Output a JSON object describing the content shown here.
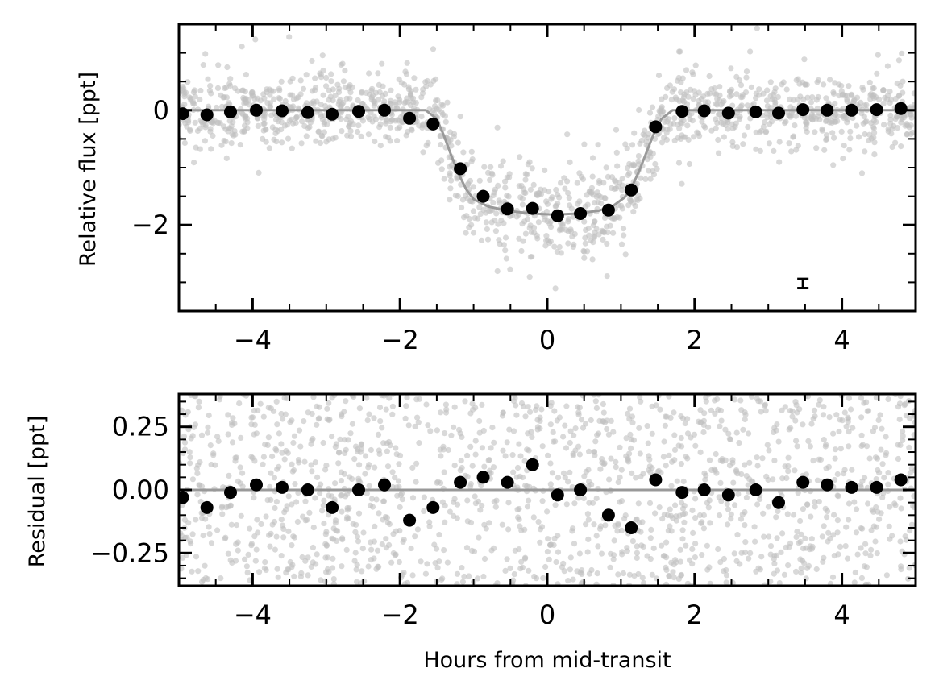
{
  "chart_data": [
    {
      "type": "scatter",
      "panel": "top",
      "xlabel": "",
      "ylabel": "Relative flux [ppt]",
      "xlim": [
        -5,
        5
      ],
      "ylim": [
        -3.5,
        1.5
      ],
      "xticks": [
        -4,
        -2,
        0,
        2,
        4
      ],
      "xtick_labels": [
        "−4",
        "−2",
        "0",
        "2",
        "4"
      ],
      "yticks": [
        -2,
        0
      ],
      "ytick_labels": [
        "−2",
        "0"
      ],
      "ticks_direction": "in",
      "colors": {
        "raw": "#bfbfbf",
        "binned": "#000000",
        "model": "#999999"
      },
      "binned_series": {
        "x": [
          -4.95,
          -4.62,
          -4.3,
          -3.95,
          -3.6,
          -3.25,
          -2.92,
          -2.56,
          -2.21,
          -1.87,
          -1.55,
          -1.18,
          -0.87,
          -0.54,
          -0.2,
          0.14,
          0.45,
          0.83,
          1.14,
          1.47,
          1.83,
          2.13,
          2.46,
          2.83,
          3.14,
          3.47,
          3.8,
          4.13,
          4.47,
          4.8
        ],
        "y": [
          -0.06,
          -0.08,
          -0.03,
          0.0,
          -0.01,
          -0.04,
          -0.07,
          -0.02,
          0.0,
          -0.14,
          -0.24,
          -1.02,
          -1.5,
          -1.72,
          -1.71,
          -1.84,
          -1.8,
          -1.74,
          -1.39,
          -0.29,
          -0.02,
          -0.01,
          -0.05,
          -0.03,
          -0.05,
          0.01,
          0.0,
          0.0,
          0.01,
          0.03
        ]
      },
      "model_series": {
        "x": [
          -5,
          -1.65,
          -1.5,
          -1.4,
          -1.3,
          -1.2,
          -1.1,
          -1.0,
          -0.8,
          -0.5,
          -0.2,
          0.1,
          0.4,
          0.7,
          0.9,
          1.05,
          1.15,
          1.25,
          1.35,
          1.45,
          1.55,
          1.7,
          5
        ],
        "y": [
          0,
          0,
          -0.15,
          -0.45,
          -0.8,
          -1.12,
          -1.38,
          -1.55,
          -1.68,
          -1.76,
          -1.8,
          -1.82,
          -1.8,
          -1.75,
          -1.66,
          -1.52,
          -1.33,
          -1.05,
          -0.72,
          -0.4,
          -0.15,
          0,
          0
        ]
      },
      "raw_scatter_sigma_ppt": 0.33,
      "typical_error_bar": {
        "x": 3.47,
        "y": -3.02,
        "half_height": 0.08
      }
    },
    {
      "type": "scatter",
      "panel": "bottom",
      "xlabel": "Hours from mid-transit",
      "ylabel": "Residual [ppt]",
      "xlim": [
        -5,
        5
      ],
      "ylim": [
        -0.38,
        0.38
      ],
      "xticks": [
        -4,
        -2,
        0,
        2,
        4
      ],
      "xtick_labels": [
        "−4",
        "−2",
        "0",
        "2",
        "4"
      ],
      "yticks": [
        -0.25,
        0.0,
        0.25
      ],
      "ytick_labels": [
        "−0.25",
        "0.00",
        "0.25"
      ],
      "ticks_direction": "in",
      "colors": {
        "raw": "#bfbfbf",
        "binned": "#000000",
        "model": "#999999"
      },
      "binned_series": {
        "x": [
          -4.95,
          -4.62,
          -4.3,
          -3.95,
          -3.6,
          -3.25,
          -2.92,
          -2.56,
          -2.21,
          -1.87,
          -1.55,
          -1.18,
          -0.87,
          -0.54,
          -0.2,
          0.14,
          0.45,
          0.83,
          1.14,
          1.47,
          1.83,
          2.13,
          2.46,
          2.83,
          3.14,
          3.47,
          3.8,
          4.13,
          4.47,
          4.8
        ],
        "y": [
          -0.03,
          -0.07,
          -0.01,
          0.02,
          0.01,
          0.0,
          -0.07,
          0.0,
          0.02,
          -0.12,
          -0.07,
          0.03,
          0.05,
          0.03,
          0.1,
          -0.02,
          0.0,
          -0.1,
          -0.15,
          0.04,
          -0.01,
          0.0,
          -0.02,
          0.0,
          -0.05,
          0.03,
          0.02,
          0.01,
          0.01,
          0.04
        ]
      },
      "zero_line_y": 0.0
    }
  ]
}
